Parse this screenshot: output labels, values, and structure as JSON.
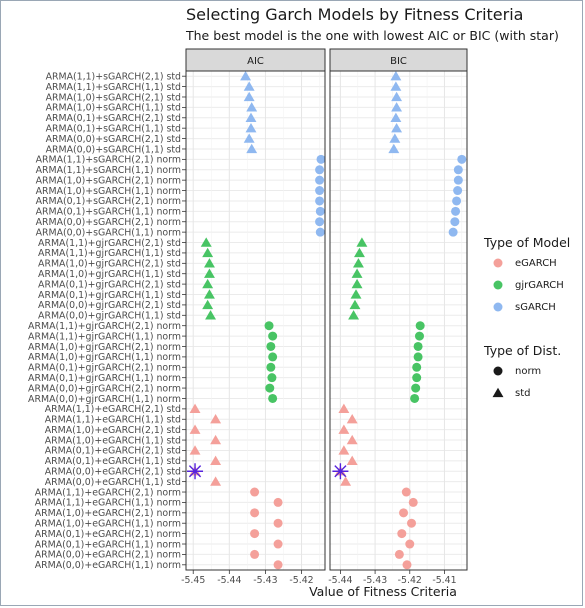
{
  "chart_data": {
    "type": "scatter",
    "title": "Selecting Garch Models by Fitness Criteria",
    "subtitle": "The best model is the one with lowest AIC or BIC (with star)",
    "xlabel": "Value of Fitness Criteria",
    "ylabel": "",
    "facets": [
      "AIC",
      "BIC"
    ],
    "x_ticks": [
      -5.45,
      -5.44,
      -5.43,
      -5.42,
      -5.41
    ],
    "xlim_aic": [
      -5.452,
      -5.4135
    ],
    "xlim_bic": [
      -5.443,
      -5.4035
    ],
    "grid": true,
    "legend_position": "right",
    "colors": {
      "eGARCH": "#f4a09a",
      "gjrGARCH": "#48c464",
      "sGARCH": "#8fb8f0",
      "best": "#5522dd"
    },
    "legend": {
      "model_title": "Type of Model",
      "models": [
        "eGARCH",
        "gjrGARCH",
        "sGARCH"
      ],
      "dist_title": "Type of Dist.",
      "dists": [
        "norm",
        "std"
      ]
    },
    "categories": [
      "ARMA(1,1)+sGARCH(2,1) std",
      "ARMA(1,1)+sGARCH(1,1) std",
      "ARMA(1,0)+sGARCH(2,1) std",
      "ARMA(1,0)+sGARCH(1,1) std",
      "ARMA(0,1)+sGARCH(2,1) std",
      "ARMA(0,1)+sGARCH(1,1) std",
      "ARMA(0,0)+sGARCH(2,1) std",
      "ARMA(0,0)+sGARCH(1,1) std",
      "ARMA(1,1)+sGARCH(2,1) norm",
      "ARMA(1,1)+sGARCH(1,1) norm",
      "ARMA(1,0)+sGARCH(2,1) norm",
      "ARMA(1,0)+sGARCH(1,1) norm",
      "ARMA(0,1)+sGARCH(2,1) norm",
      "ARMA(0,1)+sGARCH(1,1) norm",
      "ARMA(0,0)+sGARCH(2,1) norm",
      "ARMA(0,0)+sGARCH(1,1) norm",
      "ARMA(1,1)+gjrGARCH(2,1) std",
      "ARMA(1,1)+gjrGARCH(1,1) std",
      "ARMA(1,0)+gjrGARCH(2,1) std",
      "ARMA(1,0)+gjrGARCH(1,1) std",
      "ARMA(0,1)+gjrGARCH(2,1) std",
      "ARMA(0,1)+gjrGARCH(1,1) std",
      "ARMA(0,0)+gjrGARCH(2,1) std",
      "ARMA(0,0)+gjrGARCH(1,1) std",
      "ARMA(1,1)+gjrGARCH(2,1) norm",
      "ARMA(1,1)+gjrGARCH(1,1) norm",
      "ARMA(1,0)+gjrGARCH(2,1) norm",
      "ARMA(1,0)+gjrGARCH(1,1) norm",
      "ARMA(0,1)+gjrGARCH(2,1) norm",
      "ARMA(0,1)+gjrGARCH(1,1) norm",
      "ARMA(0,0)+gjrGARCH(2,1) norm",
      "ARMA(0,0)+gjrGARCH(1,1) norm",
      "ARMA(1,1)+eGARCH(2,1) std",
      "ARMA(1,1)+eGARCH(1,1) std",
      "ARMA(1,0)+eGARCH(2,1) std",
      "ARMA(1,0)+eGARCH(1,1) std",
      "ARMA(0,1)+eGARCH(2,1) std",
      "ARMA(0,1)+eGARCH(1,1) std",
      "ARMA(0,0)+eGARCH(2,1) std",
      "ARMA(0,0)+eGARCH(1,1) std",
      "ARMA(1,1)+eGARCH(2,1) norm",
      "ARMA(1,1)+eGARCH(1,1) norm",
      "ARMA(1,0)+eGARCH(2,1) norm",
      "ARMA(1,0)+eGARCH(1,1) norm",
      "ARMA(0,1)+eGARCH(2,1) norm",
      "ARMA(0,1)+eGARCH(1,1) norm",
      "ARMA(0,0)+eGARCH(2,1) norm",
      "ARMA(0,0)+eGARCH(1,1) norm"
    ],
    "model": [
      "sGARCH",
      "sGARCH",
      "sGARCH",
      "sGARCH",
      "sGARCH",
      "sGARCH",
      "sGARCH",
      "sGARCH",
      "sGARCH",
      "sGARCH",
      "sGARCH",
      "sGARCH",
      "sGARCH",
      "sGARCH",
      "sGARCH",
      "sGARCH",
      "gjrGARCH",
      "gjrGARCH",
      "gjrGARCH",
      "gjrGARCH",
      "gjrGARCH",
      "gjrGARCH",
      "gjrGARCH",
      "gjrGARCH",
      "gjrGARCH",
      "gjrGARCH",
      "gjrGARCH",
      "gjrGARCH",
      "gjrGARCH",
      "gjrGARCH",
      "gjrGARCH",
      "gjrGARCH",
      "eGARCH",
      "eGARCH",
      "eGARCH",
      "eGARCH",
      "eGARCH",
      "eGARCH",
      "eGARCH",
      "eGARCH",
      "eGARCH",
      "eGARCH",
      "eGARCH",
      "eGARCH",
      "eGARCH",
      "eGARCH",
      "eGARCH",
      "eGARCH"
    ],
    "dist": [
      "std",
      "std",
      "std",
      "std",
      "std",
      "std",
      "std",
      "std",
      "norm",
      "norm",
      "norm",
      "norm",
      "norm",
      "norm",
      "norm",
      "norm",
      "std",
      "std",
      "std",
      "std",
      "std",
      "std",
      "std",
      "std",
      "norm",
      "norm",
      "norm",
      "norm",
      "norm",
      "norm",
      "norm",
      "norm",
      "std",
      "std",
      "std",
      "std",
      "std",
      "std",
      "std",
      "std",
      "norm",
      "norm",
      "norm",
      "norm",
      "norm",
      "norm",
      "norm",
      "norm"
    ],
    "aic": [
      -5.4355,
      -5.4345,
      -5.4345,
      -5.4338,
      -5.434,
      -5.434,
      -5.4345,
      -5.4338,
      -5.4146,
      -5.415,
      -5.415,
      -5.415,
      -5.415,
      -5.4148,
      -5.415,
      -5.4148,
      -5.4464,
      -5.446,
      -5.4455,
      -5.4455,
      -5.446,
      -5.4455,
      -5.446,
      -5.4452,
      -5.429,
      -5.428,
      -5.4285,
      -5.428,
      -5.4285,
      -5.4282,
      -5.4288,
      -5.428,
      -5.4495,
      -5.4438,
      -5.4495,
      -5.4438,
      -5.4495,
      -5.4438,
      -5.4495,
      -5.4438,
      -5.433,
      -5.4265,
      -5.433,
      -5.4265,
      -5.433,
      -5.4265,
      -5.433,
      -5.4265
    ],
    "bic": [
      -5.424,
      -5.424,
      -5.4238,
      -5.4238,
      -5.424,
      -5.4238,
      -5.4243,
      -5.4246,
      -5.405,
      -5.406,
      -5.406,
      -5.4062,
      -5.4065,
      -5.4068,
      -5.407,
      -5.4075,
      -5.4338,
      -5.4345,
      -5.4348,
      -5.4352,
      -5.4352,
      -5.4355,
      -5.4358,
      -5.4362,
      -5.417,
      -5.4172,
      -5.4176,
      -5.4176,
      -5.418,
      -5.418,
      -5.4183,
      -5.4186,
      -5.439,
      -5.4366,
      -5.439,
      -5.4366,
      -5.439,
      -5.4366,
      -5.44,
      -5.4385,
      -5.421,
      -5.419,
      -5.4218,
      -5.4195,
      -5.4223,
      -5.42,
      -5.423,
      -5.4208
    ],
    "best": {
      "AIC": "ARMA(0,0)+eGARCH(2,1) std",
      "BIC": "ARMA(0,0)+eGARCH(2,1) std"
    }
  }
}
